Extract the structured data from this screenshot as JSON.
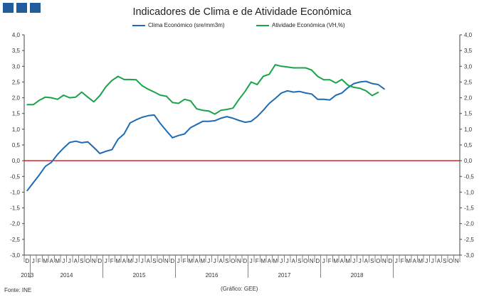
{
  "title": "Indicadores de Clima e de Atividade Económica",
  "source": "Fonte: INE",
  "credit": "(Gráfico: GEE)",
  "colors": {
    "clima": "#1f6bb5",
    "atividade": "#1aa34a",
    "zero_line": "#c00000",
    "axis": "#333333"
  },
  "chart_data": {
    "type": "line",
    "title": "Indicadores de Clima e de Atividade Económica",
    "ylim": [
      -3.0,
      4.0
    ],
    "y_ticks": [
      "-3,0",
      "-2,5",
      "-2,0",
      "-1,5",
      "-1,0",
      "-0,5",
      "0,0",
      "0,5",
      "1,0",
      "1,5",
      "2,0",
      "2,5",
      "3,0",
      "3,5",
      "4,0"
    ],
    "x_month_labels": [
      "D",
      "J",
      "F",
      "M",
      "A",
      "M",
      "J",
      "J",
      "A",
      "S",
      "O",
      "N",
      "D",
      "J",
      "F",
      "M",
      "A",
      "M",
      "J",
      "J",
      "A",
      "S",
      "O",
      "N",
      "D",
      "J",
      "F",
      "M",
      "A",
      "M",
      "J",
      "J",
      "A",
      "S",
      "O",
      "N",
      "D",
      "J",
      "F",
      "M",
      "A",
      "M",
      "J",
      "J",
      "A",
      "S",
      "O",
      "N",
      "D",
      "J",
      "F",
      "M",
      "A",
      "M",
      "J",
      "J",
      "A",
      "S",
      "O",
      "N",
      "D",
      "J",
      "F",
      "M",
      "A",
      "M",
      "J",
      "J",
      "A",
      "S",
      "O",
      "N"
    ],
    "x_year_labels": [
      {
        "label": "2013",
        "index": 0
      },
      {
        "label": "2014",
        "index": 6.5
      },
      {
        "label": "2015",
        "index": 18.5
      },
      {
        "label": "2016",
        "index": 30.5
      },
      {
        "label": "2017",
        "index": 42.5
      },
      {
        "label": "2018",
        "index": 54.5
      }
    ],
    "series": [
      {
        "name": "Clima Económico (sre/mm3m)",
        "color": "#1f6bb5",
        "values": [
          -0.95,
          -0.7,
          -0.45,
          -0.18,
          -0.05,
          0.2,
          0.4,
          0.58,
          0.62,
          0.57,
          0.6,
          0.42,
          0.23,
          0.3,
          0.35,
          0.68,
          0.85,
          1.2,
          1.3,
          1.38,
          1.43,
          1.45,
          1.18,
          0.95,
          0.73,
          0.8,
          0.85,
          1.05,
          1.15,
          1.25,
          1.25,
          1.27,
          1.35,
          1.4,
          1.35,
          1.28,
          1.22,
          1.25,
          1.4,
          1.6,
          1.82,
          1.98,
          2.15,
          2.22,
          2.18,
          2.2,
          2.15,
          2.12,
          1.95,
          1.95,
          1.93,
          2.08,
          2.15,
          2.32,
          2.45,
          2.5,
          2.52,
          2.45,
          2.42,
          2.28
        ]
      },
      {
        "name": "Atividade Económica (VH,%)",
        "color": "#1aa34a",
        "values": [
          1.78,
          1.78,
          1.92,
          2.02,
          2.0,
          1.95,
          2.08,
          2.0,
          2.02,
          2.18,
          2.02,
          1.87,
          2.07,
          2.35,
          2.55,
          2.68,
          2.58,
          2.58,
          2.57,
          2.38,
          2.27,
          2.18,
          2.08,
          2.05,
          1.85,
          1.82,
          1.95,
          1.9,
          1.65,
          1.6,
          1.58,
          1.48,
          1.6,
          1.63,
          1.67,
          1.95,
          2.2,
          2.5,
          2.42,
          2.68,
          2.75,
          3.05,
          3.0,
          2.98,
          2.95,
          2.95,
          2.95,
          2.88,
          2.68,
          2.57,
          2.57,
          2.47,
          2.58,
          2.4,
          2.33,
          2.3,
          2.22,
          2.07,
          2.17
        ]
      }
    ]
  }
}
